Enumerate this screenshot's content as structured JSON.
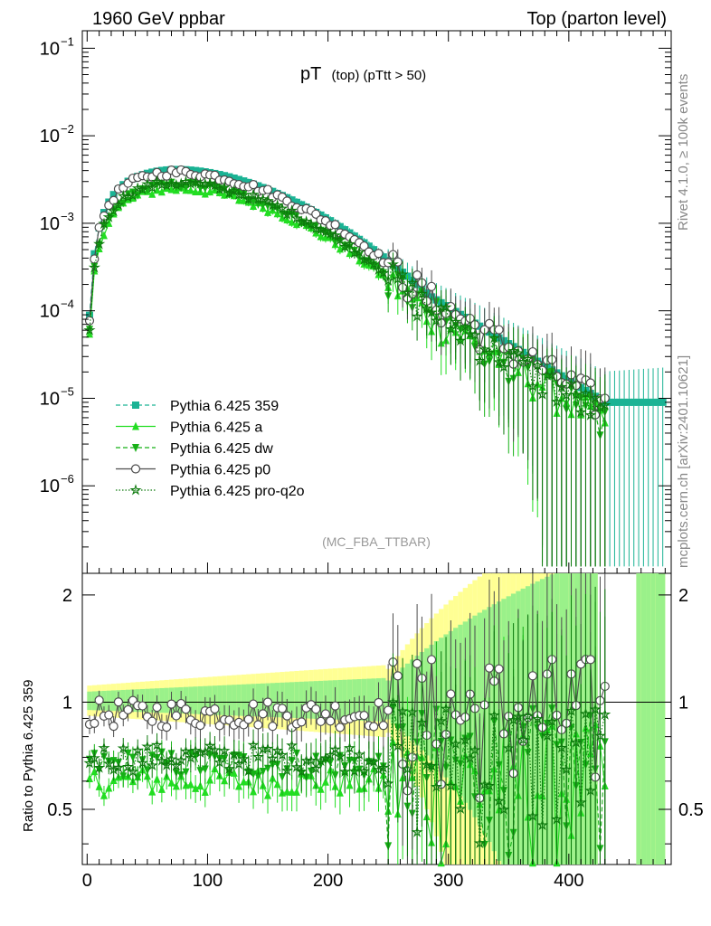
{
  "header": {
    "left": "1960 GeV ppbar",
    "right": "Top (parton level)"
  },
  "side_labels": {
    "rivet": "Rivet 4.1.0, ≥ 100k events",
    "mcplots": "mcplots.cern.ch [arXiv:2401.10621]"
  },
  "chart_data": {
    "type": "line",
    "title_main": "pT",
    "title_sub": "(top) (pTtt > 50)",
    "analysis_tag": "(MC_FBA_TTBAR)",
    "x": [
      2,
      6,
      10,
      14,
      18,
      22,
      26,
      30,
      34,
      38,
      42,
      46,
      50,
      54,
      58,
      62,
      66,
      70,
      74,
      78,
      82,
      86,
      90,
      94,
      98,
      102,
      106,
      110,
      114,
      118,
      122,
      126,
      130,
      134,
      138,
      142,
      146,
      150,
      154,
      158,
      162,
      166,
      170,
      174,
      178,
      182,
      186,
      190,
      194,
      198,
      202,
      206,
      210,
      214,
      218,
      222,
      226,
      230,
      234,
      238,
      242,
      246,
      250,
      254,
      258,
      262,
      266,
      270,
      274,
      278,
      282,
      286,
      290,
      294,
      298,
      302,
      306,
      310,
      314,
      318,
      322,
      326,
      330,
      334,
      338,
      342,
      346,
      350,
      354,
      358,
      362,
      366,
      370,
      374,
      378,
      382,
      386,
      390,
      394,
      398,
      402,
      406,
      410,
      414,
      418,
      422,
      426,
      430,
      434,
      438,
      442,
      446,
      450,
      454,
      458,
      462,
      466,
      470,
      474,
      478
    ],
    "main_axes": {
      "xlim": [
        -4,
        485
      ],
      "ylim_log10": [
        -7,
        -0.8
      ],
      "ytick_labels": [
        "10^-6",
        "10^-5",
        "10^-4",
        "10^-3",
        "10^-2",
        "10^-1"
      ],
      "yscale": "log"
    },
    "ratio_axes": {
      "ylabel": "Ratio to Pythia 6.425 359",
      "ylim": [
        0.35,
        2.3
      ],
      "ytick_labels": [
        "0.5",
        "1",
        "2"
      ],
      "yscale": "log"
    },
    "x_axis": {
      "tick_labels": [
        "0",
        "100",
        "200",
        "300",
        "400"
      ],
      "tick_values": [
        0,
        100,
        200,
        300,
        400
      ]
    },
    "series": [
      {
        "name": "Pythia 6.425 359",
        "color": "#1ab394",
        "line": "dashed",
        "marker": "square",
        "norm": 1.0,
        "ratio_mean": 1.0
      },
      {
        "name": "Pythia 6.425 a",
        "color": "#22dd22",
        "line": "solid",
        "marker": "triangle-up",
        "norm": 0.6,
        "ratio_mean": 0.6
      },
      {
        "name": "Pythia 6.425 dw",
        "color": "#16b016",
        "line": "dashed",
        "marker": "triangle-down",
        "norm": 0.67,
        "ratio_mean": 0.67
      },
      {
        "name": "Pythia 6.425 p0",
        "color": "#4d4d4d",
        "line": "solid",
        "marker": "circle-open",
        "norm": 0.93,
        "ratio_mean": 0.93
      },
      {
        "name": "Pythia 6.425 pro-q2o",
        "color": "#0d7a0d",
        "line": "dotted",
        "marker": "star",
        "norm": 0.7,
        "ratio_mean": 0.7
      }
    ],
    "reference_curve": {
      "description": "Pythia 6.425 359 spectrum shape (approximate)",
      "peak_x": 80,
      "peak_value": 0.0041,
      "value_at_200": 0.0014,
      "value_at_300": 0.00011,
      "value_at_400": 1.5e-05
    }
  }
}
